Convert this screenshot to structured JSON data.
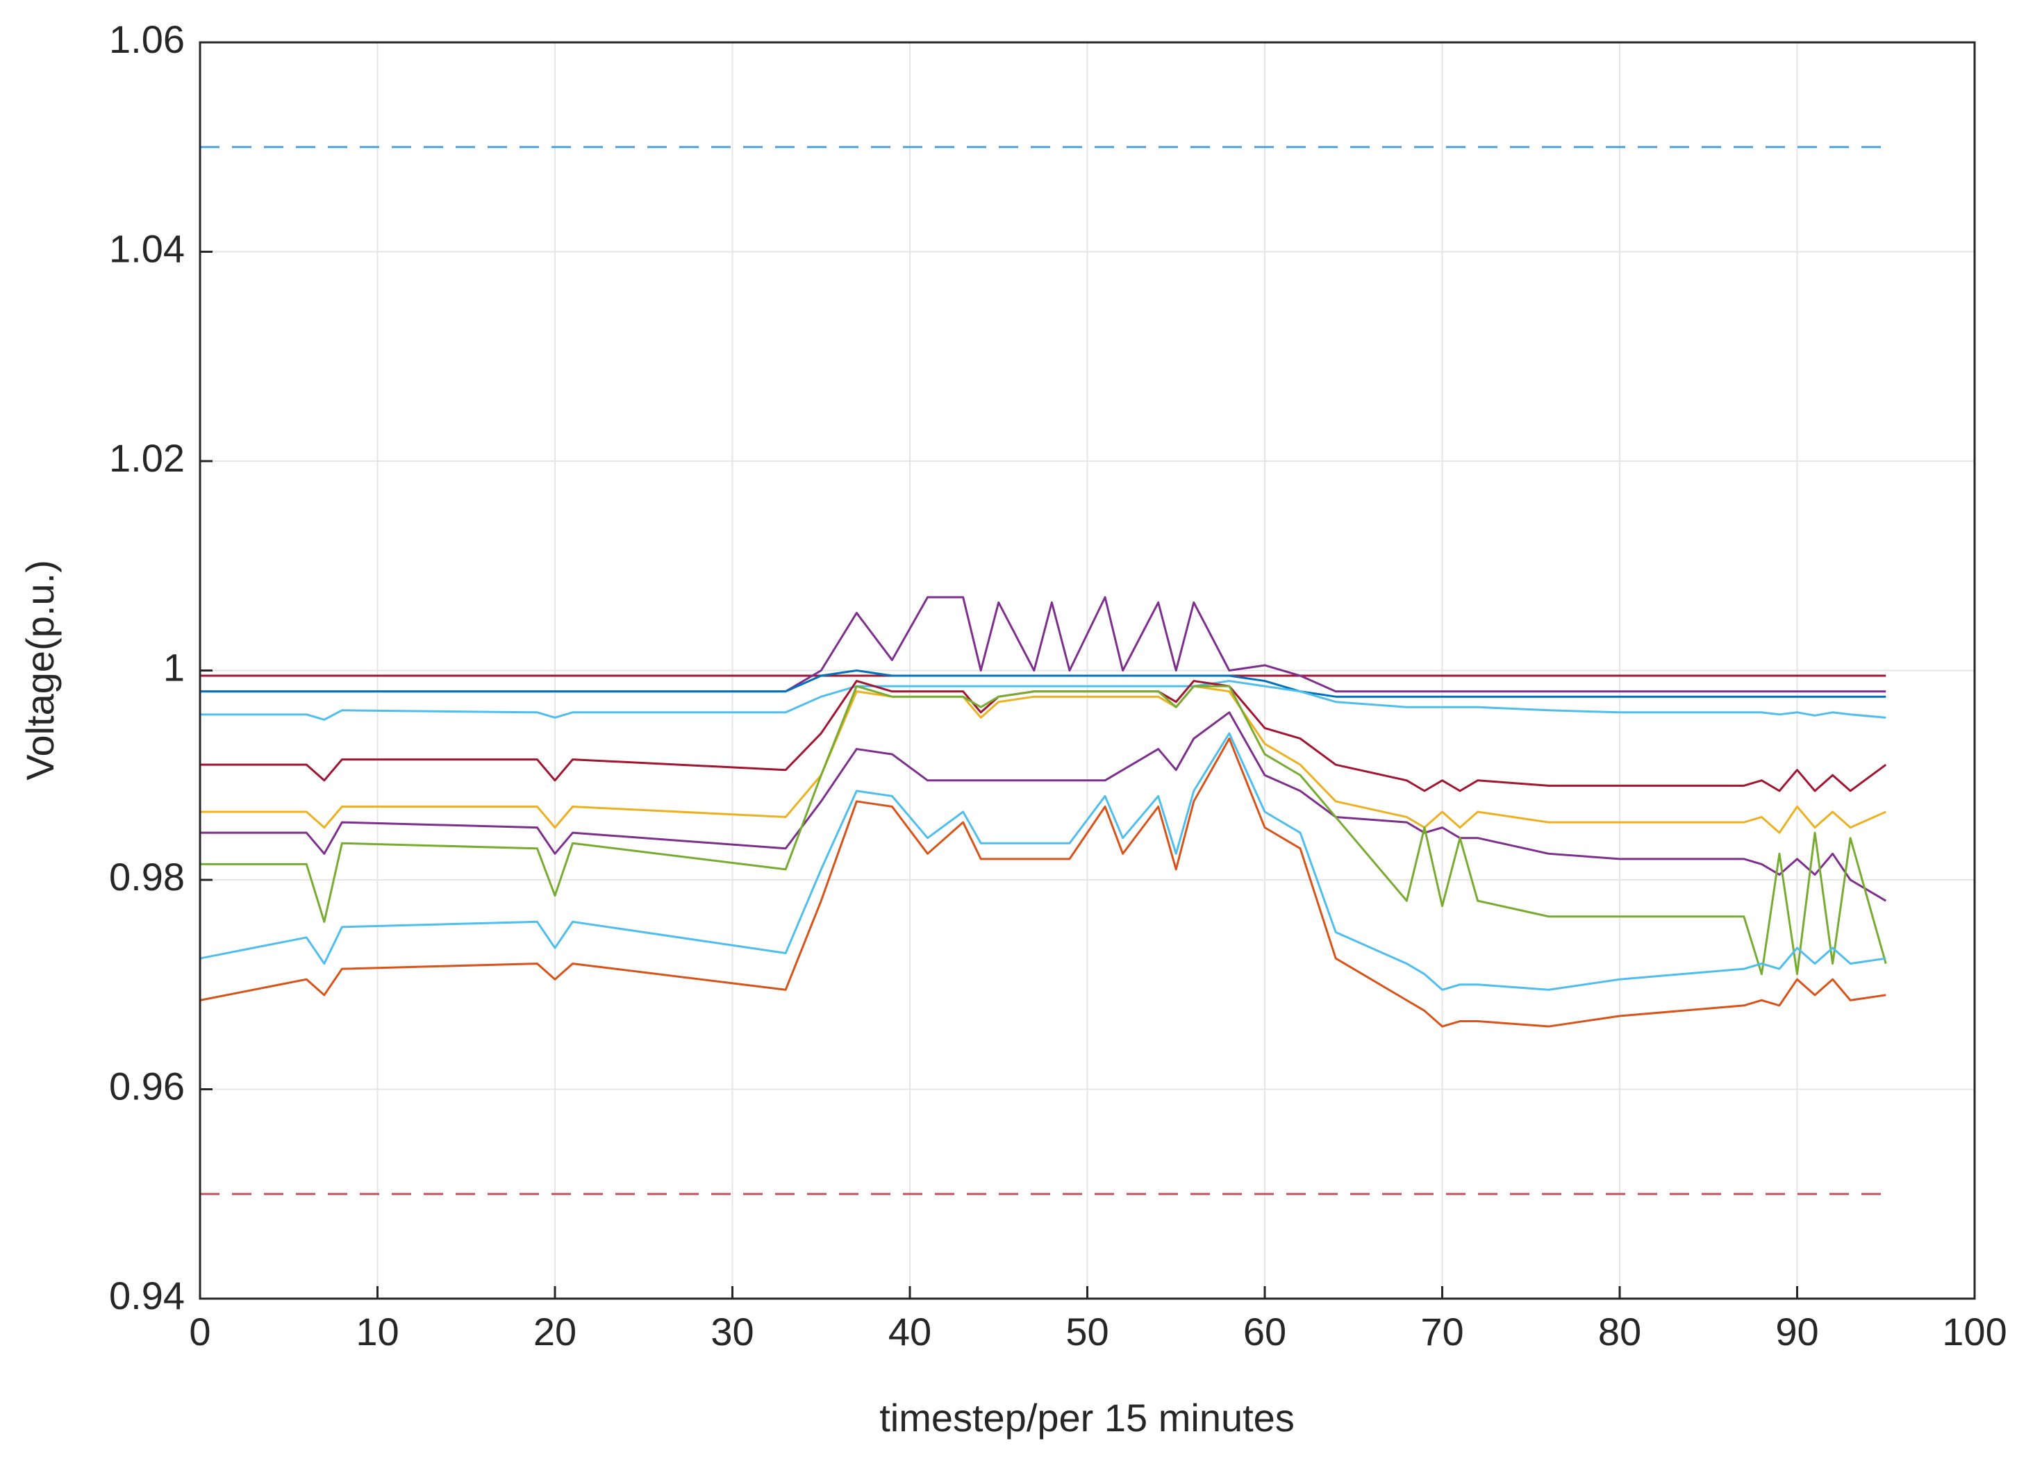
{
  "chart_data": {
    "type": "line",
    "x_label": "timestep/per 15 minutes",
    "y_label": "Voltage(p.u.)",
    "xlim": [
      0,
      100
    ],
    "xticks": [
      0,
      10,
      20,
      30,
      40,
      50,
      60,
      70,
      80,
      90,
      100
    ],
    "ylim": [
      0.94,
      1.06
    ],
    "yticks": [
      0.94,
      0.96,
      0.98,
      1,
      1.02,
      1.04,
      1.06
    ],
    "grid": true,
    "x": [
      0,
      6,
      7,
      8,
      19,
      20,
      21,
      33,
      35,
      37,
      39,
      41,
      43,
      44,
      45,
      47,
      48,
      49,
      51,
      52,
      54,
      55,
      56,
      58,
      60,
      62,
      64,
      68,
      69,
      70,
      71,
      72,
      76,
      80,
      87,
      88,
      89,
      90,
      91,
      92,
      93,
      95
    ],
    "series": [
      {
        "color": "#4da3df",
        "line_style": "dashed",
        "values": [
          1.05,
          1.05,
          1.05,
          1.05,
          1.05,
          1.05,
          1.05,
          1.05,
          1.05,
          1.05,
          1.05,
          1.05,
          1.05,
          1.05,
          1.05,
          1.05,
          1.05,
          1.05,
          1.05,
          1.05,
          1.05,
          1.05,
          1.05,
          1.05,
          1.05,
          1.05,
          1.05,
          1.05,
          1.05,
          1.05,
          1.05,
          1.05,
          1.05,
          1.05,
          1.05,
          1.05,
          1.05,
          1.05,
          1.05,
          1.05,
          1.05,
          1.05
        ]
      },
      {
        "color": "#d0505e",
        "line_style": "dashed",
        "values": [
          0.95,
          0.95,
          0.95,
          0.95,
          0.95,
          0.95,
          0.95,
          0.95,
          0.95,
          0.95,
          0.95,
          0.95,
          0.95,
          0.95,
          0.95,
          0.95,
          0.95,
          0.95,
          0.95,
          0.95,
          0.95,
          0.95,
          0.95,
          0.95,
          0.95,
          0.95,
          0.95,
          0.95,
          0.95,
          0.95,
          0.95,
          0.95,
          0.95,
          0.95,
          0.95,
          0.95,
          0.95,
          0.95,
          0.95,
          0.95,
          0.95,
          0.95
        ]
      },
      {
        "color": "#a2142f",
        "values": [
          0.9995,
          0.9995,
          0.9995,
          0.9995,
          0.9995,
          0.9995,
          0.9995,
          0.9995,
          0.9995,
          0.9995,
          0.9995,
          0.9995,
          0.9995,
          0.9995,
          0.9995,
          0.9995,
          0.9995,
          0.9995,
          0.9995,
          0.9995,
          0.9995,
          0.9995,
          0.9995,
          0.9995,
          0.9995,
          0.9995,
          0.9995,
          0.9995,
          0.9995,
          0.9995,
          0.9995,
          0.9995,
          0.9995,
          0.9995,
          0.9995,
          0.9995,
          0.9995,
          0.9995,
          0.9995,
          0.9995,
          0.9995,
          0.9995
        ]
      },
      {
        "color": "#7e2f8e",
        "values": [
          0.998,
          0.998,
          0.998,
          0.998,
          0.998,
          0.998,
          0.998,
          0.998,
          1.0,
          1.0055,
          1.001,
          1.007,
          1.007,
          1.0,
          1.0065,
          1.0,
          1.0065,
          1.0,
          1.007,
          1.0,
          1.0065,
          1.0,
          1.0065,
          1.0,
          1.0005,
          0.9995,
          0.998,
          0.998,
          0.998,
          0.998,
          0.998,
          0.998,
          0.998,
          0.998,
          0.998,
          0.998,
          0.998,
          0.998,
          0.998,
          0.998,
          0.998,
          0.998
        ]
      },
      {
        "color": "#0072bd",
        "values": [
          0.998,
          0.998,
          0.998,
          0.998,
          0.998,
          0.998,
          0.998,
          0.998,
          0.9995,
          1.0,
          0.9995,
          0.9995,
          0.9995,
          0.9995,
          0.9995,
          0.9995,
          0.9995,
          0.9995,
          0.9995,
          0.9995,
          0.9995,
          0.9995,
          0.9995,
          0.9995,
          0.999,
          0.998,
          0.9975,
          0.9975,
          0.9975,
          0.9975,
          0.9975,
          0.9975,
          0.9975,
          0.9975,
          0.9975,
          0.9975,
          0.9975,
          0.9975,
          0.9975,
          0.9975,
          0.9975,
          0.9975
        ]
      },
      {
        "color": "#4dbeee",
        "values": [
          0.9958,
          0.9958,
          0.9953,
          0.9962,
          0.996,
          0.9955,
          0.996,
          0.996,
          0.9975,
          0.9985,
          0.9985,
          0.9985,
          0.9985,
          0.9985,
          0.9985,
          0.9985,
          0.9985,
          0.9985,
          0.9985,
          0.9985,
          0.9985,
          0.9985,
          0.9985,
          0.999,
          0.9985,
          0.998,
          0.997,
          0.9965,
          0.9965,
          0.9965,
          0.9965,
          0.9965,
          0.9962,
          0.996,
          0.996,
          0.996,
          0.9958,
          0.996,
          0.9957,
          0.996,
          0.9958,
          0.9955
        ]
      },
      {
        "color": "#a2142f",
        "values": [
          0.991,
          0.991,
          0.9895,
          0.9915,
          0.9915,
          0.9895,
          0.9915,
          0.9905,
          0.994,
          0.999,
          0.998,
          0.998,
          0.998,
          0.996,
          0.9975,
          0.998,
          0.998,
          0.998,
          0.998,
          0.998,
          0.998,
          0.997,
          0.999,
          0.9985,
          0.9945,
          0.9935,
          0.991,
          0.9895,
          0.9885,
          0.9895,
          0.9885,
          0.9895,
          0.989,
          0.989,
          0.989,
          0.9895,
          0.9885,
          0.9905,
          0.9885,
          0.99,
          0.9885,
          0.991
        ]
      },
      {
        "color": "#edb120",
        "values": [
          0.9865,
          0.9865,
          0.985,
          0.987,
          0.987,
          0.985,
          0.987,
          0.986,
          0.99,
          0.998,
          0.9975,
          0.9975,
          0.9975,
          0.9955,
          0.997,
          0.9975,
          0.9975,
          0.9975,
          0.9975,
          0.9975,
          0.9975,
          0.9965,
          0.9985,
          0.998,
          0.993,
          0.991,
          0.9875,
          0.986,
          0.985,
          0.9865,
          0.985,
          0.9865,
          0.9855,
          0.9855,
          0.9855,
          0.986,
          0.9845,
          0.987,
          0.985,
          0.9865,
          0.985,
          0.9865
        ]
      },
      {
        "color": "#7e2f8e",
        "values": [
          0.9845,
          0.9845,
          0.9825,
          0.9855,
          0.985,
          0.9825,
          0.9845,
          0.983,
          0.9875,
          0.9925,
          0.992,
          0.9895,
          0.9895,
          0.9895,
          0.9895,
          0.9895,
          0.9895,
          0.9895,
          0.9895,
          0.9905,
          0.9925,
          0.9905,
          0.9935,
          0.996,
          0.99,
          0.9885,
          0.986,
          0.9855,
          0.9845,
          0.985,
          0.984,
          0.984,
          0.9825,
          0.982,
          0.982,
          0.9815,
          0.9805,
          0.982,
          0.9805,
          0.9825,
          0.98,
          0.978
        ]
      },
      {
        "color": "#77ac30",
        "values": [
          0.9815,
          0.9815,
          0.976,
          0.9835,
          0.983,
          0.9785,
          0.9835,
          0.981,
          0.99,
          0.9985,
          0.9975,
          0.9975,
          0.9975,
          0.9965,
          0.9975,
          0.998,
          0.998,
          0.998,
          0.998,
          0.998,
          0.998,
          0.9965,
          0.9985,
          0.9985,
          0.992,
          0.99,
          0.986,
          0.978,
          0.985,
          0.9775,
          0.984,
          0.978,
          0.9765,
          0.9765,
          0.9765,
          0.971,
          0.9825,
          0.971,
          0.9845,
          0.972,
          0.984,
          0.972
        ]
      },
      {
        "color": "#4dbeee",
        "values": [
          0.9725,
          0.9745,
          0.972,
          0.9755,
          0.976,
          0.9735,
          0.976,
          0.973,
          0.981,
          0.9885,
          0.988,
          0.984,
          0.9865,
          0.9835,
          0.9835,
          0.9835,
          0.9835,
          0.9835,
          0.988,
          0.984,
          0.988,
          0.9825,
          0.9885,
          0.994,
          0.9865,
          0.9845,
          0.975,
          0.972,
          0.971,
          0.9695,
          0.97,
          0.97,
          0.9695,
          0.9705,
          0.9715,
          0.972,
          0.9715,
          0.9735,
          0.972,
          0.9735,
          0.972,
          0.9725
        ]
      },
      {
        "color": "#d95319",
        "values": [
          0.9685,
          0.9705,
          0.969,
          0.9715,
          0.972,
          0.9705,
          0.972,
          0.9695,
          0.978,
          0.9875,
          0.987,
          0.9825,
          0.9855,
          0.982,
          0.982,
          0.982,
          0.982,
          0.982,
          0.987,
          0.9825,
          0.987,
          0.981,
          0.9875,
          0.9935,
          0.985,
          0.983,
          0.9725,
          0.9685,
          0.9675,
          0.966,
          0.9665,
          0.9665,
          0.966,
          0.967,
          0.968,
          0.9685,
          0.968,
          0.9705,
          0.969,
          0.9705,
          0.9685,
          0.969
        ]
      }
    ]
  }
}
